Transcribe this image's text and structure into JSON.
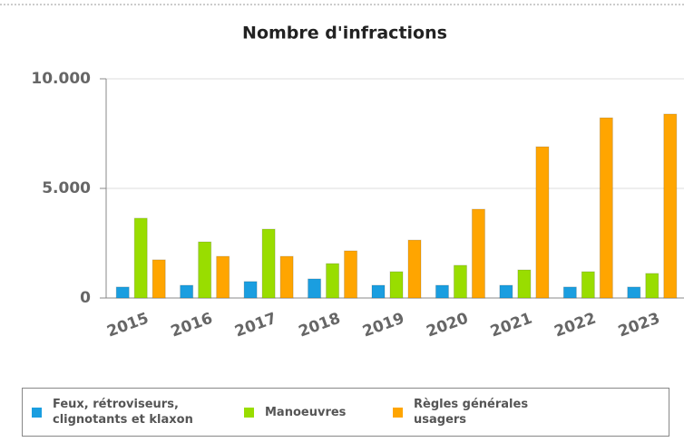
{
  "chart_data": {
    "type": "bar",
    "title": "Nombre d'infractions",
    "categories": [
      "2015",
      "2016",
      "2017",
      "2018",
      "2019",
      "2020",
      "2021",
      "2022",
      "2023"
    ],
    "series": [
      {
        "name": "Feux, rétroviseurs, clignotants et klaxon",
        "color": "#1a9ee0",
        "values": [
          500,
          580,
          750,
          870,
          580,
          580,
          580,
          500,
          500
        ]
      },
      {
        "name": "Manoeuvres",
        "color": "#99dd00",
        "values": [
          3640,
          2560,
          3140,
          1570,
          1200,
          1490,
          1280,
          1200,
          1120
        ]
      },
      {
        "name": "Règles générales usagers",
        "color": "#ffa500",
        "values": [
          1740,
          1900,
          1900,
          2150,
          2640,
          4050,
          6900,
          8220,
          8390
        ]
      }
    ],
    "ylim": [
      0,
      10000
    ],
    "yticks": [
      0,
      {
        "value": 5000,
        "label": "5.000"
      },
      {
        "value": 10000,
        "label": "10.000"
      }
    ],
    "grid": true,
    "legend": "bottom"
  }
}
